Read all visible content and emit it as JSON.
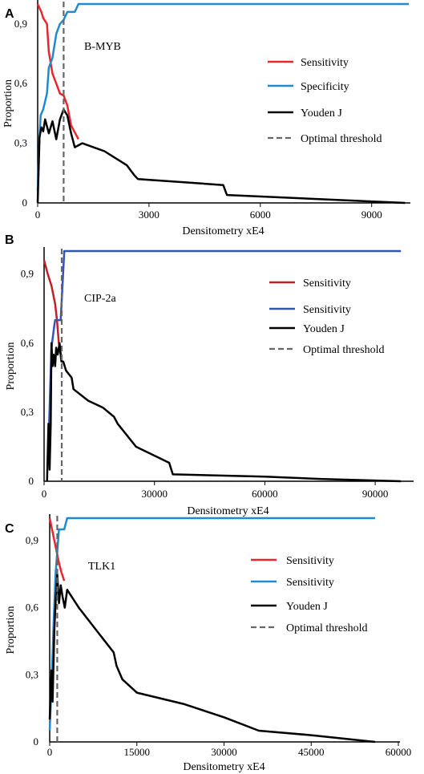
{
  "chart_data": [
    {
      "type": "line",
      "panel": "A",
      "annotation": "B-MYB",
      "xlabel": "Densitometry xE4",
      "ylabel": "Proportion",
      "xlim": [
        0,
        10000
      ],
      "ylim": [
        0,
        1
      ],
      "xticks": [
        0,
        3000,
        6000,
        9000
      ],
      "xtick_labels": [
        "0",
        "3000",
        "6000",
        "9000"
      ],
      "yticks": [
        0,
        0.3,
        0.6,
        0.9
      ],
      "ytick_labels": [
        "0",
        "0,3",
        "0,6",
        "0,9"
      ],
      "threshold": 700,
      "series": [
        {
          "name": "Sensitivity",
          "color": "#e8262b",
          "x": [
            0,
            100,
            150,
            250,
            300,
            400,
            500,
            600,
            700,
            800,
            900,
            1100
          ],
          "y": [
            1.0,
            0.96,
            0.93,
            0.9,
            0.76,
            0.65,
            0.6,
            0.55,
            0.54,
            0.49,
            0.39,
            0.32
          ]
        },
        {
          "name": "Specificity",
          "color": "#1f8ad2",
          "x": [
            0,
            40,
            80,
            150,
            250,
            300,
            400,
            500,
            600,
            700,
            800,
            900,
            1000,
            1100,
            10000
          ],
          "y": [
            0.06,
            0.3,
            0.44,
            0.47,
            0.55,
            0.68,
            0.73,
            0.85,
            0.9,
            0.92,
            0.96,
            0.96,
            0.96,
            1.0,
            1.0
          ]
        },
        {
          "name": "Youden J",
          "color": "#000000",
          "x": [
            0,
            50,
            100,
            150,
            200,
            300,
            400,
            500,
            600,
            700,
            800,
            900,
            1000,
            1200,
            1800,
            2400,
            2600,
            2700,
            5000,
            5100,
            9900
          ],
          "y": [
            0.0,
            0.33,
            0.38,
            0.36,
            0.42,
            0.35,
            0.41,
            0.32,
            0.42,
            0.47,
            0.44,
            0.35,
            0.28,
            0.3,
            0.26,
            0.19,
            0.14,
            0.12,
            0.09,
            0.04,
            0.0
          ]
        }
      ],
      "legend": [
        "Sensitivity",
        "Specificity",
        "Youden J",
        "Optimal threshold"
      ]
    },
    {
      "type": "line",
      "panel": "B",
      "annotation": "CIP-2a",
      "xlabel": "Densitometry xE4",
      "ylabel": "Proportion",
      "xlim": [
        0,
        100000
      ],
      "ylim": [
        0,
        1
      ],
      "xticks": [
        0,
        30000,
        60000,
        90000
      ],
      "xtick_labels": [
        "0",
        "30000",
        "60000",
        "90000"
      ],
      "yticks": [
        0,
        0.3,
        0.6,
        0.9
      ],
      "ytick_labels": [
        "0",
        "0,3",
        "0,6",
        "0,9"
      ],
      "threshold": 4800,
      "series": [
        {
          "name": "Sensitivity",
          "color": "#c0202a",
          "x": [
            0,
            1000,
            2000,
            3000,
            3500,
            4000,
            4500,
            4800
          ],
          "y": [
            0.96,
            0.9,
            0.85,
            0.77,
            0.7,
            0.6,
            0.55,
            0.52
          ]
        },
        {
          "name": "Sensitivity",
          "color": "#2f55b8",
          "x": [
            1000,
            1500,
            2000,
            2800,
            3000,
            4500,
            5500,
            97000
          ],
          "y": [
            0.08,
            0.32,
            0.58,
            0.68,
            0.7,
            0.7,
            1.0,
            1.0
          ]
        },
        {
          "name": "Youden J",
          "color": "#000000",
          "x": [
            800,
            1200,
            1500,
            1800,
            2000,
            2300,
            2600,
            3000,
            3300,
            3700,
            4200,
            4700,
            5200,
            6000,
            7500,
            8000,
            12000,
            16000,
            19000,
            20000,
            25000,
            34000,
            35000,
            60000,
            75000,
            97000
          ],
          "y": [
            0.0,
            0.25,
            0.05,
            0.25,
            0.6,
            0.5,
            0.55,
            0.5,
            0.58,
            0.55,
            0.6,
            0.52,
            0.52,
            0.48,
            0.45,
            0.4,
            0.35,
            0.32,
            0.28,
            0.25,
            0.15,
            0.08,
            0.03,
            0.02,
            0.01,
            0.0
          ]
        }
      ],
      "legend": [
        "Sensitivity",
        "Sensitivity",
        "Youden J",
        "Optimal threshold"
      ]
    },
    {
      "type": "line",
      "panel": "C",
      "annotation": "TLK1",
      "xlabel": "Densitometry xE4",
      "ylabel": "Proportion",
      "xlim": [
        0,
        60000
      ],
      "ylim": [
        0,
        1
      ],
      "xticks": [
        0,
        15000,
        30000,
        45000,
        60000
      ],
      "xtick_labels": [
        "0",
        "15000",
        "30000",
        "45000",
        "60000"
      ],
      "yticks": [
        0,
        0.3,
        0.6,
        0.9
      ],
      "ytick_labels": [
        "0",
        "0,3",
        "0,6",
        "0,9"
      ],
      "threshold": 1300,
      "series": [
        {
          "name": "Sensitivity",
          "color": "#e8262b",
          "x": [
            0,
            400,
            800,
            1200,
            1600,
            2000,
            2500
          ],
          "y": [
            1.0,
            0.95,
            0.9,
            0.85,
            0.8,
            0.76,
            0.72
          ]
        },
        {
          "name": "Sensitivity",
          "color": "#1f8ad2",
          "x": [
            0,
            300,
            700,
            1000,
            1300,
            1600,
            2000,
            2500,
            3000,
            56000
          ],
          "y": [
            0.05,
            0.25,
            0.55,
            0.75,
            0.85,
            0.95,
            0.95,
            0.95,
            1.0,
            1.0
          ]
        },
        {
          "name": "Youden J",
          "color": "#000000",
          "x": [
            0,
            300,
            500,
            800,
            1000,
            1300,
            1600,
            1900,
            2200,
            2600,
            3000,
            5000,
            8000,
            11000,
            11500,
            12500,
            15000,
            23000,
            30000,
            36000,
            45000,
            56000
          ],
          "y": [
            0.1,
            0.32,
            0.18,
            0.5,
            0.62,
            0.75,
            0.62,
            0.7,
            0.65,
            0.6,
            0.68,
            0.6,
            0.5,
            0.4,
            0.34,
            0.28,
            0.22,
            0.17,
            0.11,
            0.05,
            0.03,
            0.0
          ]
        }
      ],
      "legend": [
        "Sensitivity",
        "Sensitivity",
        "Youden J",
        "Optimal threshold"
      ]
    }
  ]
}
